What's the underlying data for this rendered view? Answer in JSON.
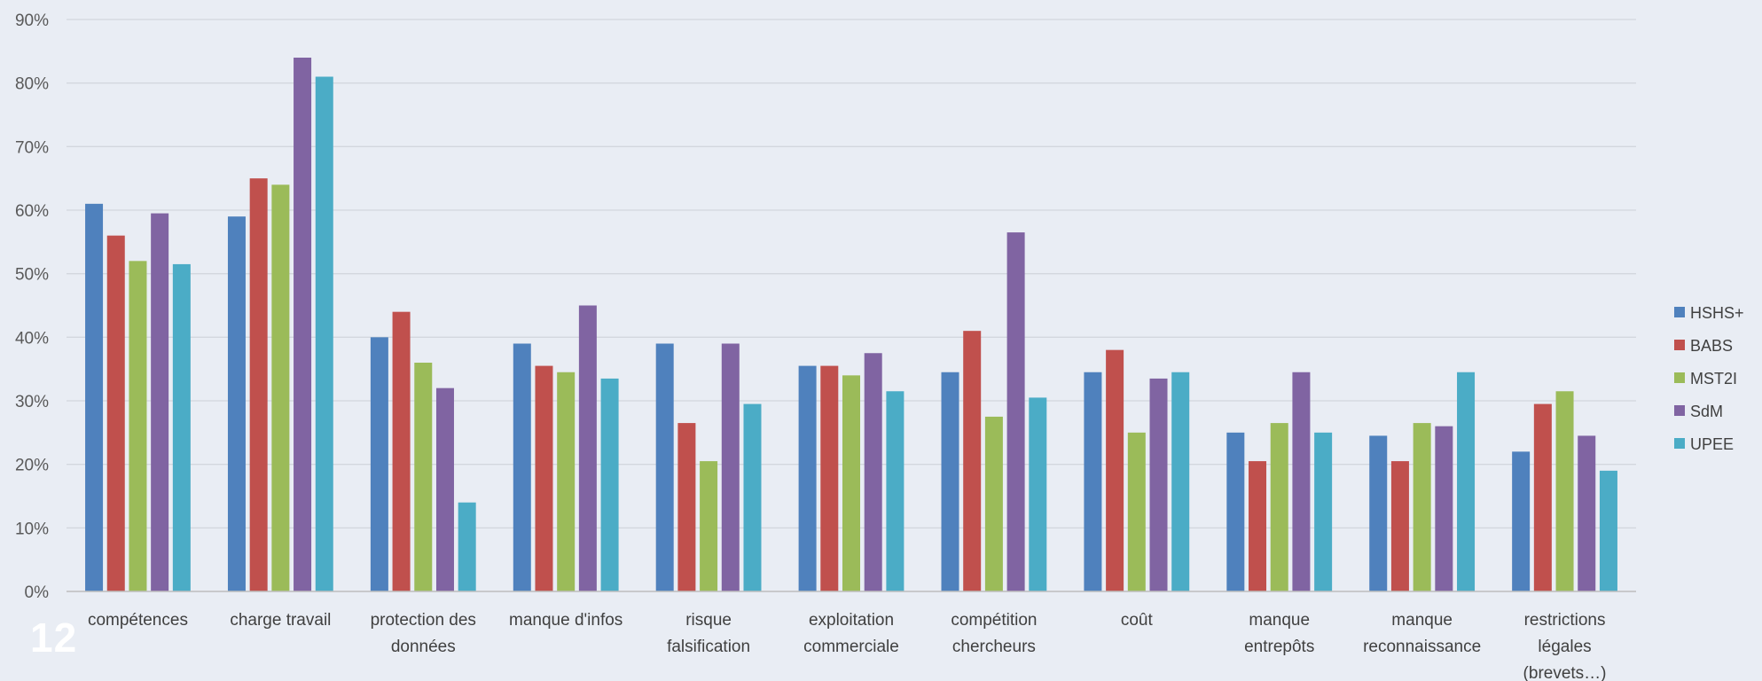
{
  "page_number": "12",
  "chart_data": {
    "type": "bar",
    "title": "",
    "xlabel": "",
    "ylabel": "",
    "ylim": [
      0,
      90
    ],
    "y_ticks": [
      "0%",
      "10%",
      "20%",
      "30%",
      "40%",
      "50%",
      "60%",
      "70%",
      "80%",
      "90%"
    ],
    "grid": true,
    "legend_position": "right",
    "categories": [
      [
        "compétences"
      ],
      [
        "charge travail"
      ],
      [
        "protection des",
        "données"
      ],
      [
        "manque d'infos"
      ],
      [
        "risque",
        "falsification"
      ],
      [
        "exploitation",
        "commerciale"
      ],
      [
        "compétition",
        "chercheurs"
      ],
      [
        "coût"
      ],
      [
        "manque",
        "entrepôts"
      ],
      [
        "manque",
        "reconnaissance"
      ],
      [
        "restrictions",
        "légales",
        "(brevets…)"
      ]
    ],
    "series": [
      {
        "name": "HSHS+",
        "color": "#4f81bd",
        "values": [
          61,
          59,
          40,
          39,
          39,
          35.5,
          34.5,
          34.5,
          25,
          24.5,
          22
        ]
      },
      {
        "name": "BABS",
        "color": "#c0504d",
        "values": [
          56,
          65,
          44,
          35.5,
          26.5,
          35.5,
          41,
          38,
          20.5,
          20.5,
          29.5
        ]
      },
      {
        "name": "MST2I",
        "color": "#9bbb59",
        "values": [
          52,
          64,
          36,
          34.5,
          20.5,
          34,
          27.5,
          25,
          26.5,
          26.5,
          31.5
        ]
      },
      {
        "name": "SdM",
        "color": "#8064a2",
        "values": [
          59.5,
          84,
          32,
          45,
          39,
          37.5,
          56.5,
          33.5,
          34.5,
          26,
          24.5
        ]
      },
      {
        "name": "UPEE",
        "color": "#4bacc6",
        "values": [
          51.5,
          81,
          14,
          33.5,
          29.5,
          31.5,
          30.5,
          34.5,
          25,
          34.5,
          19
        ]
      }
    ]
  }
}
